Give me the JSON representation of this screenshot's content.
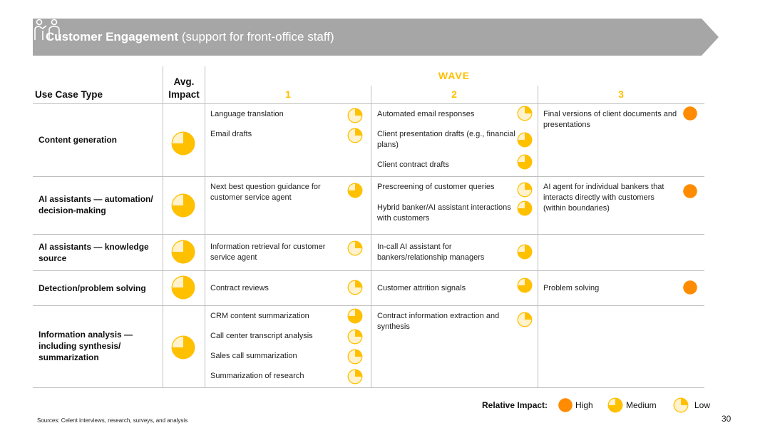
{
  "banner": {
    "title": "Customer Engagement",
    "subtitle": "(support for front-office staff)",
    "icon": "people-icon"
  },
  "headers": {
    "use_case_type": "Use Case Type",
    "avg_impact": "Avg. Impact",
    "wave": "WAVE",
    "wave_numbers": [
      "1",
      "2",
      "3"
    ]
  },
  "rows": [
    {
      "label": "Content generation",
      "avg_level": "medium",
      "waves": [
        [
          {
            "text": "Language translation",
            "level": "low"
          },
          {
            "text": "Email drafts",
            "level": "low"
          }
        ],
        [
          {
            "text": "Automated email responses",
            "level": "low"
          },
          {
            "text": "Client presentation drafts (e.g., financial plans)",
            "level": "medium"
          },
          {
            "text": "Client contract drafts",
            "level": "medium"
          }
        ],
        [
          {
            "text": "Final versions of client documents and presentations",
            "level": "high"
          }
        ]
      ]
    },
    {
      "label": "AI assistants — automation/ decision-making",
      "avg_level": "medium",
      "waves": [
        [
          {
            "text": "Next best question guidance for customer service agent",
            "level": "medium"
          }
        ],
        [
          {
            "text": "Prescreening of customer queries",
            "level": "low"
          },
          {
            "text": "Hybrid banker/AI assistant interactions with customers",
            "level": "medium"
          }
        ],
        [
          {
            "text": "AI agent for individual bankers that interacts directly with customers (within boundaries)",
            "level": "high"
          }
        ]
      ]
    },
    {
      "label": "AI assistants — knowledge source",
      "avg_level": "medium",
      "waves": [
        [
          {
            "text": "Information retrieval for customer service agent",
            "level": "low"
          }
        ],
        [
          {
            "text": "In-call AI assistant for bankers/relationship managers",
            "level": "medium"
          }
        ],
        []
      ]
    },
    {
      "label": "Detection/problem solving",
      "avg_level": "medium",
      "waves": [
        [
          {
            "text": "Contract reviews",
            "level": "low"
          }
        ],
        [
          {
            "text": "Customer attrition signals",
            "level": "medium"
          }
        ],
        [
          {
            "text": "Problem solving",
            "level": "high"
          }
        ]
      ]
    },
    {
      "label": "Information analysis — including synthesis/ summarization",
      "avg_level": "medium",
      "waves": [
        [
          {
            "text": "CRM content summarization",
            "level": "medium"
          },
          {
            "text": "Call center transcript analysis",
            "level": "low"
          },
          {
            "text": "Sales call summarization",
            "level": "low"
          },
          {
            "text": "Summarization of research",
            "level": "low"
          }
        ],
        [
          {
            "text": "Contract information extraction and synthesis",
            "level": "low"
          }
        ],
        []
      ]
    }
  ],
  "legend": {
    "title": "Relative Impact:",
    "items": [
      {
        "label": "High",
        "level": "high"
      },
      {
        "label": "Medium",
        "level": "medium"
      },
      {
        "label": "Low",
        "level": "low"
      }
    ]
  },
  "sources": "Sources: Celent interviews, research, surveys, and analysis",
  "page_number": "30",
  "colors": {
    "banner": "#a6a6a6",
    "accent": "#ffc000",
    "high": "#ff8c00",
    "low_fill": "#fff2cc",
    "grid": "#bfbfbf"
  }
}
